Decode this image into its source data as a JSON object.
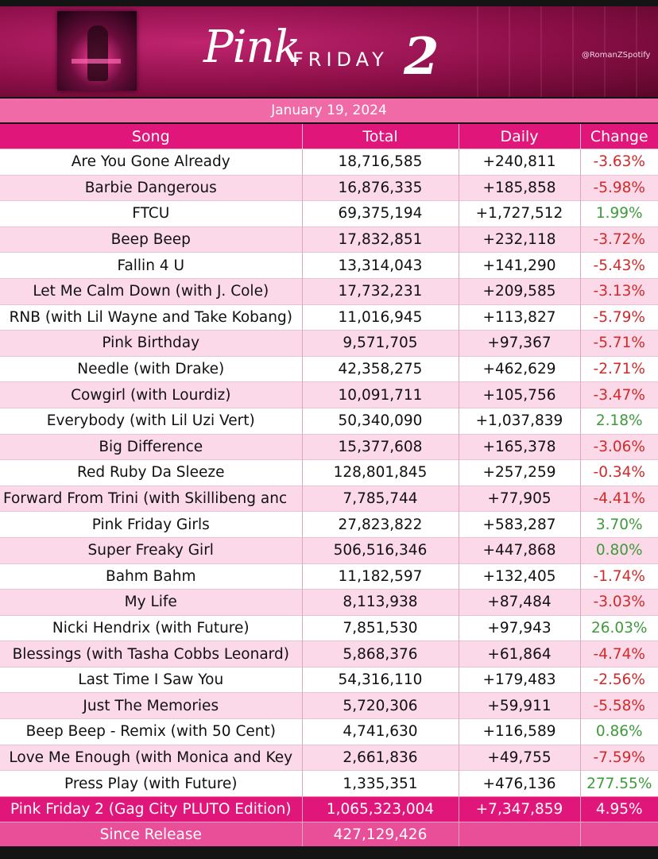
{
  "header": {
    "logo_pink": "Pink",
    "logo_friday": "FRIDAY",
    "logo_two": "2",
    "handle": "@RomanZSpotify",
    "date": "January 19, 2024"
  },
  "table": {
    "columns": [
      "Song",
      "Total",
      "Daily",
      "Change"
    ],
    "rows": [
      {
        "song": "Are You Gone Already",
        "total": "18,716,585",
        "daily": "+240,811",
        "change": "-3.63%"
      },
      {
        "song": "Barbie Dangerous",
        "total": "16,876,335",
        "daily": "+185,858",
        "change": "-5.98%"
      },
      {
        "song": "FTCU",
        "total": "69,375,194",
        "daily": "+1,727,512",
        "change": "1.99%"
      },
      {
        "song": "Beep Beep",
        "total": "17,832,851",
        "daily": "+232,118",
        "change": "-3.72%"
      },
      {
        "song": "Fallin 4 U",
        "total": "13,314,043",
        "daily": "+141,290",
        "change": "-5.43%"
      },
      {
        "song": "Let Me Calm Down (with J. Cole)",
        "total": "17,732,231",
        "daily": "+209,585",
        "change": "-3.13%"
      },
      {
        "song": "RNB (with Lil Wayne and Take Kobang)",
        "total": "11,016,945",
        "daily": "+113,827",
        "change": "-5.79%"
      },
      {
        "song": "Pink Birthday",
        "total": "9,571,705",
        "daily": "+97,367",
        "change": "-5.71%"
      },
      {
        "song": "Needle (with Drake)",
        "total": "42,358,275",
        "daily": "+462,629",
        "change": "-2.71%"
      },
      {
        "song": "Cowgirl (with Lourdiz)",
        "total": "10,091,711",
        "daily": "+105,756",
        "change": "-3.47%"
      },
      {
        "song": "Everybody (with Lil Uzi Vert)",
        "total": "50,340,090",
        "daily": "+1,037,839",
        "change": "2.18%"
      },
      {
        "song": "Big Difference",
        "total": "15,377,608",
        "daily": "+165,378",
        "change": "-3.06%"
      },
      {
        "song": "Red Ruby Da Sleeze",
        "total": "128,801,845",
        "daily": "+257,259",
        "change": "-0.34%"
      },
      {
        "song": "Forward From Trini (with Skillibeng anc",
        "total": "7,785,744",
        "daily": "+77,905",
        "change": "-4.41%"
      },
      {
        "song": "Pink Friday Girls",
        "total": "27,823,822",
        "daily": "+583,287",
        "change": "3.70%"
      },
      {
        "song": "Super Freaky Girl",
        "total": "506,516,346",
        "daily": "+447,868",
        "change": "0.80%"
      },
      {
        "song": "Bahm Bahm",
        "total": "11,182,597",
        "daily": "+132,405",
        "change": "-1.74%"
      },
      {
        "song": "My Life",
        "total": "8,113,938",
        "daily": "+87,484",
        "change": "-3.03%"
      },
      {
        "song": "Nicki Hendrix (with Future)",
        "total": "7,851,530",
        "daily": "+97,943",
        "change": "26.03%"
      },
      {
        "song": "Blessings (with Tasha Cobbs Leonard)",
        "total": "5,868,376",
        "daily": "+61,864",
        "change": "-4.74%"
      },
      {
        "song": "Last Time I Saw You",
        "total": "54,316,110",
        "daily": "+179,483",
        "change": "-2.56%"
      },
      {
        "song": "Just The Memories",
        "total": "5,720,306",
        "daily": "+59,911",
        "change": "-5.58%"
      },
      {
        "song": "Beep Beep - Remix (with 50 Cent)",
        "total": "4,741,630",
        "daily": "+116,589",
        "change": "0.86%"
      },
      {
        "song": "Love Me Enough (with Monica and Key",
        "total": "2,661,836",
        "daily": "+49,755",
        "change": "-7.59%"
      },
      {
        "song": "Press Play (with Future)",
        "total": "1,335,351",
        "daily": "+476,136",
        "change": "277.55%"
      }
    ],
    "total_row": {
      "song": "Pink Friday 2 (Gag City PLUTO Edition)",
      "total": "1,065,323,004",
      "daily": "+7,347,859",
      "change": "4.95%"
    },
    "since_row": {
      "label": "Since Release",
      "total": "427,129,426"
    }
  },
  "colors": {
    "header_pink": "#e0167a",
    "row_pink": "#fbd9e8",
    "negative": "#d22a2a",
    "positive": "#3f9a3c"
  }
}
